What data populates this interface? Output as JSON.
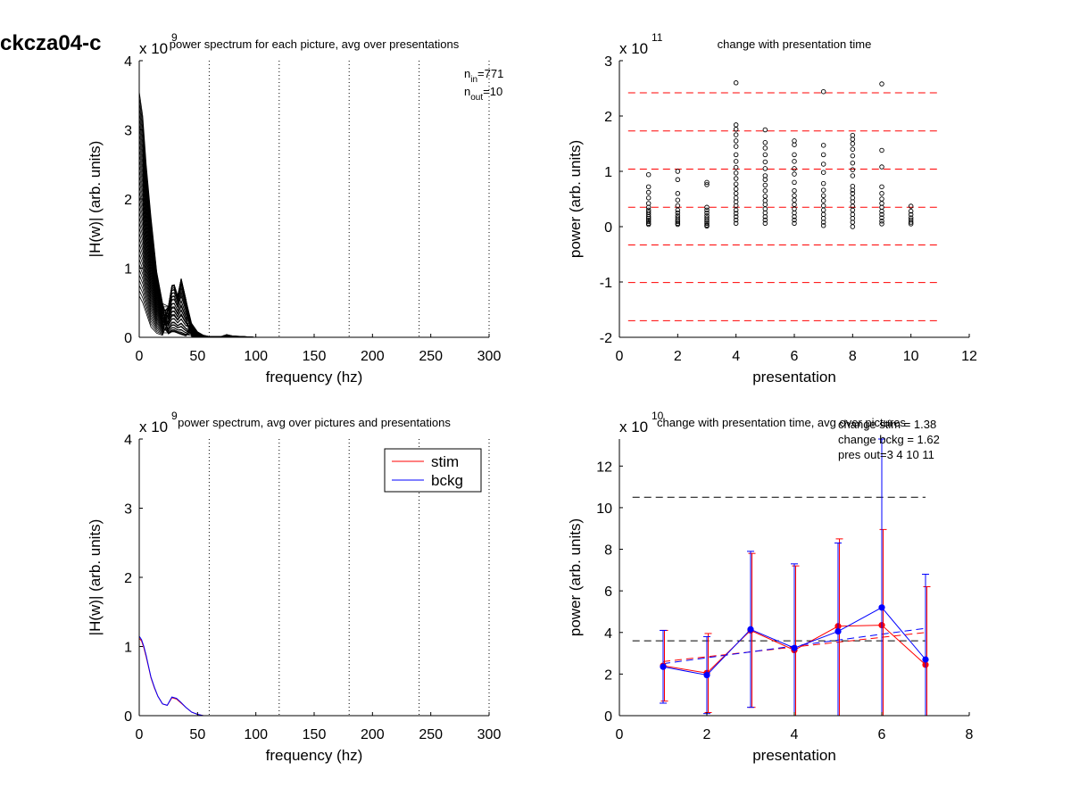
{
  "figure_label": "ckcza04-c",
  "colors": {
    "stim": "#ff0000",
    "bckg": "#0000ff",
    "dash_red": "#ff0000",
    "axis": "#000000"
  },
  "chart_data": [
    {
      "id": "p1",
      "type": "line",
      "title": "power spectrum for each picture, avg over presentations",
      "xlabel": "frequency (hz)",
      "ylabel": "|H(w)| (arb. units)",
      "exponent": "x 10",
      "exponent_power": "9",
      "xlim": [
        0,
        300
      ],
      "ylim": [
        0,
        4
      ],
      "xticks": [
        0,
        50,
        100,
        150,
        200,
        250,
        300
      ],
      "yticks": [
        0,
        1,
        2,
        3,
        4
      ],
      "vlines": [
        60,
        120,
        180,
        240,
        300
      ],
      "annotation": {
        "n_in_label": "n",
        "n_in_sub": "in",
        "n_in_value": "=771",
        "n_out_label": "n",
        "n_out_sub": "out",
        "n_out_value": "=10"
      },
      "x": [
        0,
        3,
        6,
        10,
        15,
        20,
        25,
        28,
        30,
        33,
        36,
        40,
        45,
        50,
        55,
        60,
        70,
        75,
        80,
        90,
        100,
        150,
        200,
        250,
        300
      ],
      "curve_count": 40,
      "envelope": {
        "max": [
          3.55,
          3.2,
          2.5,
          1.75,
          0.95,
          0.5,
          0.45,
          0.75,
          0.76,
          0.6,
          0.85,
          0.55,
          0.2,
          0.08,
          0.03,
          0.01,
          0.01,
          0.04,
          0.02,
          0.01,
          0.0,
          0.0,
          0.0,
          0.0,
          0.0
        ],
        "min": [
          0.6,
          0.5,
          0.35,
          0.15,
          0.06,
          0.03,
          0.05,
          0.08,
          0.08,
          0.06,
          0.04,
          0.02,
          0.01,
          0.0,
          0.0,
          0.0,
          0.0,
          0.0,
          0.0,
          0.0,
          0.0,
          0.0,
          0.0,
          0.0,
          0.0
        ]
      }
    },
    {
      "id": "p2",
      "type": "scatter",
      "title": "change with presentation time",
      "xlabel": "presentation",
      "ylabel": "power (arb. units)",
      "exponent": "x 10",
      "exponent_power": "11",
      "xlim": [
        0,
        12
      ],
      "ylim": [
        -2,
        3
      ],
      "xticks": [
        0,
        2,
        4,
        6,
        8,
        10,
        12
      ],
      "yticks": [
        -2,
        -1,
        0,
        1,
        2,
        3
      ],
      "hlines_dashed_red": [
        2.42,
        1.73,
        1.04,
        0.35,
        -0.33,
        -1.01,
        -1.7
      ],
      "hline_x_range": [
        0.3,
        11
      ],
      "points": [
        {
          "x": 1,
          "y": [
            0.94,
            0.72,
            0.62,
            0.52,
            0.42,
            0.35,
            0.3,
            0.26,
            0.22,
            0.18,
            0.15,
            0.12,
            0.09,
            0.06,
            0.04
          ]
        },
        {
          "x": 2,
          "y": [
            1.0,
            0.85,
            0.6,
            0.48,
            0.38,
            0.3,
            0.25,
            0.2,
            0.16,
            0.12,
            0.09,
            0.06,
            0.04
          ]
        },
        {
          "x": 3,
          "y": [
            0.8,
            0.76,
            0.35,
            0.3,
            0.25,
            0.2,
            0.16,
            0.12,
            0.09,
            0.06,
            0.03,
            0.01
          ]
        },
        {
          "x": 4,
          "y": [
            2.6,
            1.84,
            1.76,
            1.66,
            1.55,
            1.45,
            1.3,
            1.18,
            1.07,
            0.97,
            0.87,
            0.77,
            0.68,
            0.6,
            0.52,
            0.45,
            0.38,
            0.3,
            0.24,
            0.18,
            0.12,
            0.06
          ]
        },
        {
          "x": 5,
          "y": [
            1.75,
            1.52,
            1.42,
            1.3,
            1.17,
            1.05,
            0.92,
            0.85,
            0.75,
            0.65,
            0.55,
            0.47,
            0.4,
            0.32,
            0.25,
            0.18,
            0.12,
            0.06
          ]
        },
        {
          "x": 6,
          "y": [
            1.55,
            1.48,
            1.3,
            1.18,
            1.05,
            0.95,
            0.8,
            0.65,
            0.56,
            0.48,
            0.4,
            0.32,
            0.25,
            0.18,
            0.12,
            0.06
          ]
        },
        {
          "x": 7,
          "y": [
            2.44,
            1.47,
            1.3,
            1.13,
            0.98,
            0.78,
            0.66,
            0.56,
            0.47,
            0.38,
            0.3,
            0.22,
            0.15,
            0.08,
            0.02
          ]
        },
        {
          "x": 8,
          "y": [
            1.65,
            1.58,
            1.5,
            1.4,
            1.28,
            1.15,
            1.03,
            0.92,
            0.73,
            0.66,
            0.6,
            0.52,
            0.45,
            0.37,
            0.3,
            0.22,
            0.15,
            0.08,
            0.0
          ]
        },
        {
          "x": 9,
          "y": [
            2.58,
            1.38,
            1.08,
            0.72,
            0.6,
            0.5,
            0.42,
            0.35,
            0.28,
            0.22,
            0.16,
            0.1,
            0.05
          ]
        },
        {
          "x": 10,
          "y": [
            0.37,
            0.28,
            0.22,
            0.16,
            0.12,
            0.08,
            0.05
          ]
        }
      ]
    },
    {
      "id": "p3",
      "type": "line",
      "title": "power spectrum, avg over pictures and presentations",
      "xlabel": "frequency (hz)",
      "ylabel": "|H(w)| (arb. units)",
      "exponent": "x 10",
      "exponent_power": "9",
      "xlim": [
        0,
        300
      ],
      "ylim": [
        0,
        4
      ],
      "xticks": [
        0,
        50,
        100,
        150,
        200,
        250,
        300
      ],
      "yticks": [
        0,
        1,
        2,
        3,
        4
      ],
      "vlines": [
        60,
        120,
        180,
        240,
        300
      ],
      "legend_position": "top-right",
      "series": [
        {
          "name": "stim",
          "color": "#ff0000",
          "x": [
            0,
            2,
            4,
            6,
            8,
            10,
            13,
            16,
            20,
            24,
            28,
            32,
            36,
            40,
            45,
            50,
            55,
            60,
            70,
            80,
            300
          ],
          "values": [
            1.12,
            1.08,
            0.98,
            0.85,
            0.7,
            0.55,
            0.4,
            0.28,
            0.17,
            0.15,
            0.26,
            0.24,
            0.18,
            0.12,
            0.05,
            0.02,
            0.0,
            0.0,
            0.0,
            0.0,
            0.0
          ]
        },
        {
          "name": "bckg",
          "color": "#0000ff",
          "x": [
            0,
            2,
            4,
            6,
            8,
            10,
            13,
            16,
            20,
            24,
            28,
            32,
            36,
            40,
            45,
            50,
            55,
            60,
            70,
            80,
            300
          ],
          "values": [
            1.15,
            1.1,
            1.0,
            0.87,
            0.71,
            0.56,
            0.41,
            0.28,
            0.17,
            0.15,
            0.27,
            0.25,
            0.19,
            0.12,
            0.05,
            0.02,
            0.0,
            0.0,
            0.0,
            0.0,
            0.0
          ]
        }
      ]
    },
    {
      "id": "p4",
      "type": "line",
      "title": "change with presentation time, avg over pictures",
      "xlabel": "presentation",
      "ylabel": "power (arb. units)",
      "exponent": "x 10",
      "exponent_power": "10",
      "xlim": [
        0,
        8
      ],
      "ylim": [
        0,
        13.3
      ],
      "xticks": [
        0,
        2,
        4,
        6,
        8
      ],
      "yticks": [
        0,
        2,
        4,
        6,
        8,
        10,
        12
      ],
      "annotations": [
        "change stim = 1.38",
        "change bckg = 1.62",
        "pres out=3 4 10 11"
      ],
      "hlines_dashed_black": [
        10.5,
        3.6
      ],
      "hline_x_range": [
        0.3,
        7
      ],
      "categories": [
        1,
        2,
        3,
        4,
        5,
        6,
        7
      ],
      "series": [
        {
          "name": "stim",
          "color": "#ff0000",
          "values": [
            2.4,
            2.05,
            4.1,
            3.15,
            4.3,
            4.35,
            2.45
          ],
          "err_low": [
            0.7,
            0.15,
            0.4,
            0.0,
            0.0,
            0.0,
            0.0
          ],
          "err_high": [
            4.1,
            3.95,
            7.8,
            7.2,
            8.5,
            8.95,
            6.2
          ],
          "trend": [
            2.6,
            4.0
          ]
        },
        {
          "name": "bckg",
          "color": "#0000ff",
          "values": [
            2.35,
            1.95,
            4.15,
            3.25,
            4.05,
            5.2,
            2.7
          ],
          "err_low": [
            0.6,
            0.1,
            0.4,
            0.0,
            0.0,
            0.0,
            0.0
          ],
          "err_high": [
            4.1,
            3.8,
            7.9,
            7.3,
            8.3,
            13.3,
            6.8
          ],
          "trend": [
            2.5,
            4.2
          ]
        }
      ]
    }
  ]
}
